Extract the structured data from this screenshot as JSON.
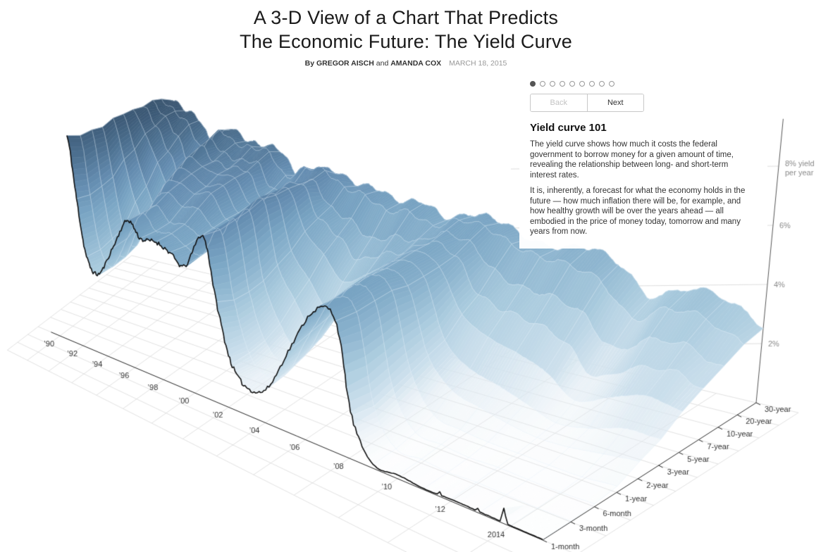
{
  "header": {
    "title_line1": "A 3-D View of a Chart That Predicts",
    "title_line2": "The Economic Future: The Yield Curve",
    "byline_by": "By",
    "author1": "GREGOR AISCH",
    "byline_and": "and",
    "author2": "AMANDA COX",
    "date": "MARCH 18, 2015"
  },
  "stepper": {
    "total_steps": 9,
    "active_step": 0,
    "back_label": "Back",
    "next_label": "Next"
  },
  "panel": {
    "heading": "Yield curve 101",
    "paragraph1": "The yield curve shows how much it costs the federal government to borrow money for a given amount of time, revealing the relationship between long- and short-term interest rates.",
    "paragraph2": "It is, inherently, a forecast for what the economy holds in the future — how much inflation there will be, for example, and how healthy growth will be over the years ahead — all embodied in the price of money today, tomorrow and many years from now."
  },
  "chart_data": {
    "type": "surface",
    "title": "U.S. Treasury yield curve, 1990-2015",
    "x_axis": {
      "range": [
        1990,
        2015
      ],
      "ticks": [
        {
          "year": 1990,
          "label": "’90"
        },
        {
          "year": 1992,
          "label": "’92"
        },
        {
          "year": 1994,
          "label": "’94"
        },
        {
          "year": 1996,
          "label": "’96"
        },
        {
          "year": 1998,
          "label": "’98"
        },
        {
          "year": 2000,
          "label": "’00"
        },
        {
          "year": 2002,
          "label": "’02"
        },
        {
          "year": 2004,
          "label": "’04"
        },
        {
          "year": 2006,
          "label": "’06"
        },
        {
          "year": 2008,
          "label": "’08"
        },
        {
          "year": 2010,
          "label": "’10"
        },
        {
          "year": 2012,
          "label": "’12"
        },
        {
          "year": 2014,
          "label": "2014"
        }
      ]
    },
    "maturity_axis": {
      "labels": [
        "1-month",
        "3-month",
        "6-month",
        "1-year",
        "2-year",
        "3-year",
        "5-year",
        "7-year",
        "10-year",
        "20-year",
        "30-year"
      ]
    },
    "yield_axis": {
      "range": [
        0,
        9.5
      ],
      "grid": true,
      "ticks": [
        {
          "value": 2,
          "label": "2%"
        },
        {
          "value": 4,
          "label": "4%"
        },
        {
          "value": 6,
          "label": "6%"
        },
        {
          "value": 8,
          "label": "8% yield",
          "sublabel": "per year"
        }
      ]
    },
    "front_series": "1-month",
    "years": [
      1990,
      1991,
      1992,
      1993,
      1994,
      1995,
      1996,
      1997,
      1998,
      1999,
      2000,
      2001,
      2002,
      2003,
      2004,
      2005,
      2006,
      2007,
      2008,
      2009,
      2010,
      2011,
      2012,
      2013,
      2014,
      2015
    ],
    "yields_pct_by_year": [
      [
        7.9,
        7.8,
        7.9,
        7.9,
        8.2,
        8.3,
        8.4,
        8.5,
        8.6,
        8.6,
        8.6
      ],
      [
        5.6,
        5.5,
        5.7,
        5.9,
        6.5,
        6.8,
        7.4,
        7.7,
        7.9,
        8.1,
        8.1
      ],
      [
        3.5,
        3.5,
        3.7,
        3.9,
        4.8,
        5.3,
        6.2,
        6.6,
        7.0,
        7.5,
        7.7
      ],
      [
        3.0,
        3.0,
        3.1,
        3.3,
        4.0,
        4.4,
        5.2,
        5.6,
        5.9,
        6.4,
        6.6
      ],
      [
        4.2,
        4.3,
        4.7,
        5.3,
        5.9,
        6.3,
        6.7,
        7.0,
        7.1,
        7.4,
        7.4
      ],
      [
        5.5,
        5.5,
        5.6,
        5.9,
        6.1,
        6.3,
        6.4,
        6.5,
        6.6,
        6.9,
        6.9
      ],
      [
        5.0,
        5.0,
        5.1,
        5.5,
        5.8,
        5.9,
        6.2,
        6.3,
        6.4,
        6.8,
        6.7
      ],
      [
        5.1,
        5.1,
        5.2,
        5.6,
        6.0,
        6.1,
        6.2,
        6.3,
        6.4,
        6.7,
        6.6
      ],
      [
        4.9,
        4.8,
        4.9,
        5.0,
        5.1,
        5.1,
        5.2,
        5.3,
        5.3,
        5.7,
        5.6
      ],
      [
        4.6,
        4.7,
        4.8,
        5.1,
        5.4,
        5.5,
        5.6,
        5.8,
        5.6,
        6.2,
        5.9
      ],
      [
        6.0,
        5.9,
        6.0,
        6.1,
        6.3,
        6.2,
        6.2,
        6.2,
        6.0,
        6.2,
        5.9
      ],
      [
        3.7,
        3.4,
        3.4,
        3.5,
        3.8,
        4.1,
        4.6,
        4.9,
        5.0,
        5.6,
        5.5
      ],
      [
        1.7,
        1.6,
        1.7,
        2.0,
        2.6,
        3.1,
        3.8,
        4.3,
        4.6,
        5.4,
        5.4
      ],
      [
        1.0,
        1.0,
        1.1,
        1.2,
        1.6,
        2.1,
        2.9,
        3.5,
        4.0,
        4.9,
        5.0
      ],
      [
        1.3,
        1.4,
        1.6,
        1.9,
        2.4,
        2.8,
        3.4,
        3.9,
        4.3,
        5.0,
        5.1
      ],
      [
        3.1,
        3.2,
        3.4,
        3.6,
        3.9,
        4.0,
        4.1,
        4.2,
        4.3,
        4.6,
        4.6
      ],
      [
        4.8,
        4.8,
        4.9,
        4.9,
        4.8,
        4.8,
        4.8,
        4.8,
        4.8,
        5.0,
        4.9
      ],
      [
        4.8,
        4.6,
        4.6,
        4.6,
        4.4,
        4.4,
        4.4,
        4.5,
        4.6,
        4.9,
        4.8
      ],
      [
        1.5,
        1.4,
        1.6,
        1.8,
        2.0,
        2.2,
        2.8,
        3.2,
        3.7,
        4.4,
        4.3
      ],
      [
        0.15,
        0.16,
        0.3,
        0.5,
        1.0,
        1.4,
        2.2,
        2.8,
        3.3,
        4.1,
        4.1
      ],
      [
        0.14,
        0.14,
        0.2,
        0.3,
        0.7,
        1.1,
        1.9,
        2.6,
        3.2,
        4.0,
        4.3
      ],
      [
        0.04,
        0.05,
        0.1,
        0.2,
        0.45,
        0.75,
        1.5,
        2.2,
        2.8,
        3.6,
        3.9
      ],
      [
        0.07,
        0.09,
        0.13,
        0.17,
        0.28,
        0.38,
        0.76,
        1.2,
        1.8,
        2.5,
        2.9
      ],
      [
        0.05,
        0.06,
        0.09,
        0.13,
        0.31,
        0.54,
        1.2,
        1.8,
        2.4,
        3.1,
        3.4
      ],
      [
        0.03,
        0.03,
        0.06,
        0.12,
        0.46,
        0.9,
        1.6,
        2.1,
        2.5,
        3.0,
        3.3
      ],
      [
        0.02,
        0.03,
        0.1,
        0.22,
        0.6,
        0.9,
        1.4,
        1.8,
        2.0,
        2.4,
        2.6
      ]
    ],
    "colors": {
      "scale": [
        [
          0,
          "#f2f6f9"
        ],
        [
          1,
          "#e0ebf3"
        ],
        [
          2,
          "#c6dcea"
        ],
        [
          3,
          "#aacbde"
        ],
        [
          4,
          "#8fb6d0"
        ],
        [
          5,
          "#79a4c3"
        ],
        [
          6,
          "#648cb0"
        ],
        [
          7,
          "#4f7393"
        ],
        [
          8,
          "#3e5c79"
        ],
        [
          9,
          "#344e68"
        ]
      ],
      "front_line": "#101010",
      "mesh": "rgba(228,240,248,0.55)",
      "floor_grid": "#dedede",
      "yield_grid": "#d4d4d4",
      "axis": "#2b2b2b",
      "tick_label": "#333333",
      "yield_label": "#8a8a8a"
    }
  }
}
